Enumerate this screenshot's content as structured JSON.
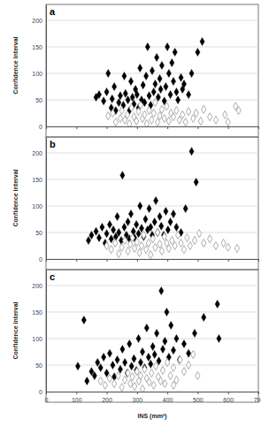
{
  "chart_data": [
    {
      "type": "scatter",
      "title": "a",
      "y_label": "Confidence interval",
      "xlim": [
        0,
        700
      ],
      "xticks": [
        0,
        100,
        200,
        300,
        400,
        500,
        600,
        700
      ],
      "ylim": [
        0,
        230
      ],
      "yticks": [
        0,
        50,
        100,
        150,
        200
      ],
      "grid": true,
      "tick_labels": "y",
      "series": [
        {
          "color": "#000000",
          "marker": "diamond",
          "x": [
            165,
            175,
            190,
            200,
            205,
            215,
            218,
            225,
            230,
            240,
            245,
            255,
            258,
            262,
            270,
            275,
            280,
            285,
            290,
            295,
            300,
            305,
            310,
            315,
            320,
            325,
            330,
            335,
            340,
            345,
            350,
            355,
            360,
            365,
            370,
            375,
            378,
            382,
            390,
            395,
            400,
            405,
            410,
            415,
            420,
            425,
            430,
            435,
            445,
            450,
            455,
            470,
            500,
            515,
            480
          ],
          "values": [
            55,
            60,
            48,
            65,
            100,
            35,
            52,
            75,
            30,
            45,
            58,
            40,
            95,
            62,
            50,
            30,
            85,
            55,
            42,
            70,
            60,
            35,
            110,
            50,
            78,
            45,
            95,
            150,
            58,
            40,
            105,
            65,
            80,
            130,
            55,
            90,
            70,
            115,
            48,
            75,
            150,
            100,
            60,
            120,
            85,
            140,
            65,
            50,
            92,
            70,
            80,
            60,
            140,
            160,
            100
          ]
        },
        {
          "color": "#999999",
          "marker": "diamond-open",
          "x": [
            205,
            220,
            230,
            245,
            250,
            260,
            268,
            275,
            282,
            290,
            298,
            305,
            312,
            318,
            325,
            332,
            340,
            348,
            355,
            360,
            368,
            375,
            382,
            390,
            398,
            405,
            412,
            420,
            430,
            440,
            450,
            460,
            470,
            485,
            495,
            510,
            520,
            540,
            560,
            590,
            625,
            635,
            600
          ],
          "values": [
            20,
            25,
            8,
            15,
            30,
            12,
            22,
            5,
            35,
            18,
            10,
            28,
            40,
            15,
            22,
            5,
            30,
            12,
            25,
            45,
            8,
            20,
            32,
            15,
            38,
            10,
            25,
            18,
            30,
            12,
            22,
            8,
            28,
            15,
            25,
            10,
            32,
            18,
            12,
            22,
            38,
            30,
            8
          ]
        }
      ]
    },
    {
      "type": "scatter",
      "title": "b",
      "y_label": "Confidence interval",
      "xlim": [
        0,
        700
      ],
      "xticks": [
        0,
        100,
        200,
        300,
        400,
        500,
        600,
        700
      ],
      "ylim": [
        0,
        230
      ],
      "yticks": [
        0,
        50,
        100,
        150,
        200
      ],
      "grid": true,
      "tick_labels": "y",
      "series": [
        {
          "color": "#000000",
          "marker": "diamond",
          "x": [
            140,
            150,
            165,
            175,
            185,
            195,
            200,
            210,
            215,
            222,
            230,
            235,
            240,
            248,
            252,
            258,
            265,
            270,
            275,
            280,
            288,
            292,
            298,
            305,
            310,
            315,
            322,
            328,
            335,
            340,
            345,
            350,
            358,
            362,
            368,
            375,
            380,
            388,
            395,
            402,
            410,
            420,
            430,
            445,
            480,
            495,
            460
          ],
          "values": [
            35,
            45,
            52,
            40,
            60,
            30,
            48,
            65,
            38,
            55,
            42,
            80,
            50,
            35,
            158,
            60,
            45,
            70,
            38,
            85,
            52,
            40,
            65,
            48,
            100,
            58,
            42,
            75,
            55,
            95,
            60,
            45,
            70,
            110,
            50,
            80,
            62,
            45,
            90,
            55,
            70,
            85,
            60,
            50,
            203,
            145,
            95
          ]
        },
        {
          "color": "#999999",
          "marker": "diamond-open",
          "x": [
            200,
            215,
            228,
            240,
            250,
            260,
            270,
            278,
            285,
            292,
            300,
            308,
            315,
            322,
            330,
            338,
            345,
            352,
            360,
            368,
            375,
            382,
            390,
            398,
            405,
            415,
            425,
            435,
            445,
            455,
            465,
            475,
            490,
            505,
            520,
            540,
            560,
            585,
            600,
            630
          ],
          "values": [
            25,
            18,
            30,
            10,
            22,
            35,
            15,
            28,
            40,
            20,
            32,
            12,
            25,
            45,
            18,
            30,
            8,
            38,
            22,
            50,
            28,
            15,
            42,
            30,
            20,
            35,
            25,
            45,
            30,
            18,
            40,
            25,
            35,
            48,
            30,
            38,
            25,
            30,
            22,
            20
          ]
        }
      ]
    },
    {
      "type": "scatter",
      "title": "c",
      "y_label": "Confidence interval",
      "x_label": "INS (mm²)",
      "xlim": [
        0,
        700
      ],
      "xticks": [
        0,
        100,
        200,
        300,
        400,
        500,
        600,
        700
      ],
      "ylim": [
        0,
        230
      ],
      "yticks": [
        0,
        50,
        100,
        150,
        200
      ],
      "grid": true,
      "series": [
        {
          "color": "#000000",
          "marker": "diamond",
          "x": [
            105,
            125,
            135,
            150,
            160,
            170,
            180,
            190,
            200,
            210,
            220,
            225,
            235,
            245,
            252,
            260,
            268,
            275,
            282,
            290,
            298,
            305,
            312,
            318,
            325,
            332,
            338,
            345,
            352,
            358,
            365,
            372,
            380,
            385,
            392,
            398,
            405,
            412,
            420,
            430,
            440,
            455,
            470,
            490,
            520,
            565,
            570
          ],
          "values": [
            48,
            135,
            20,
            38,
            30,
            55,
            45,
            65,
            35,
            72,
            50,
            28,
            60,
            42,
            80,
            55,
            35,
            90,
            48,
            62,
            40,
            100,
            55,
            75,
            45,
            120,
            65,
            52,
            85,
            70,
            110,
            58,
            190,
            80,
            95,
            150,
            65,
            125,
            78,
            100,
            60,
            90,
            72,
            110,
            140,
            165,
            100
          ]
        },
        {
          "color": "#999999",
          "marker": "diamond-open",
          "x": [
            180,
            195,
            210,
            225,
            238,
            250,
            260,
            270,
            278,
            285,
            292,
            300,
            306,
            312,
            318,
            325,
            332,
            340,
            348,
            355,
            362,
            370,
            378,
            385,
            392,
            400,
            410,
            420,
            430,
            442,
            455,
            470,
            485,
            500,
            420
          ],
          "values": [
            20,
            12,
            25,
            15,
            30,
            8,
            22,
            35,
            15,
            28,
            10,
            38,
            20,
            30,
            5,
            42,
            25,
            18,
            35,
            12,
            48,
            28,
            20,
            40,
            15,
            55,
            30,
            45,
            22,
            60,
            38,
            50,
            70,
            30,
            12
          ]
        }
      ]
    }
  ]
}
